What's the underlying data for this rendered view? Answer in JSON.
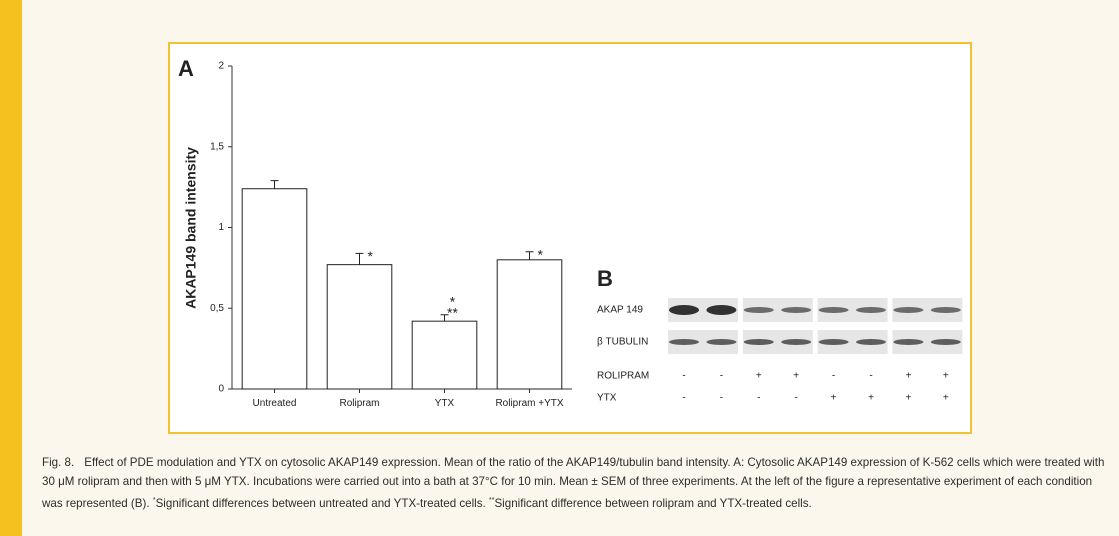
{
  "chart_data": {
    "type": "bar",
    "panel": "A",
    "y_label": "AKAP149 band intensity",
    "categories": [
      "Untreated",
      "Rolipram",
      "YTX",
      "Rolipram +YTX"
    ],
    "values": [
      1.24,
      0.77,
      0.42,
      0.8
    ],
    "errors": [
      0.05,
      0.07,
      0.04,
      0.05
    ],
    "significance": [
      [],
      [
        "*"
      ],
      [
        "*",
        "**"
      ],
      [
        "*"
      ]
    ],
    "color": "#ffffff",
    "ylim": [
      0,
      2
    ],
    "yticks": [
      0,
      {
        "value": 0.5,
        "label": "0,5"
      },
      1,
      {
        "value": 1.5,
        "label": "1,5"
      },
      2
    ]
  },
  "blot": {
    "panel": "B",
    "rows": [
      {
        "label": "AKAP 149"
      },
      {
        "label": "β TUBULIN"
      }
    ],
    "conditions": [
      {
        "label": "ROLIPRAM",
        "signs": [
          "-",
          "-",
          "+",
          "+",
          "-",
          "-",
          "+",
          "+"
        ]
      },
      {
        "label": "YTX",
        "signs": [
          "-",
          "-",
          "-",
          "-",
          "+",
          "+",
          "+",
          "+"
        ]
      }
    ]
  },
  "caption": {
    "label": "Fig. 8.",
    "segments": [
      "Effect of PDE modulation and YTX on cytosolic AKAP149 expression. Mean of the ratio of the AKAP149/tubulin band intensity. A: Cytosolic AKAP149 expression of K-562 cells which were treated with 30 μM rolipram and then with 5 μM YTX. Incubations were carried out into a bath at 37°C for 10 min. Mean ± SEM of three experiments. At the left of the figure a representative experiment of each condition was represented (B). ",
      "*",
      "Significant differences between untreated and YTX-treated cells. ",
      "**",
      "Significant difference between rolipram and YTX-treated cells."
    ]
  }
}
